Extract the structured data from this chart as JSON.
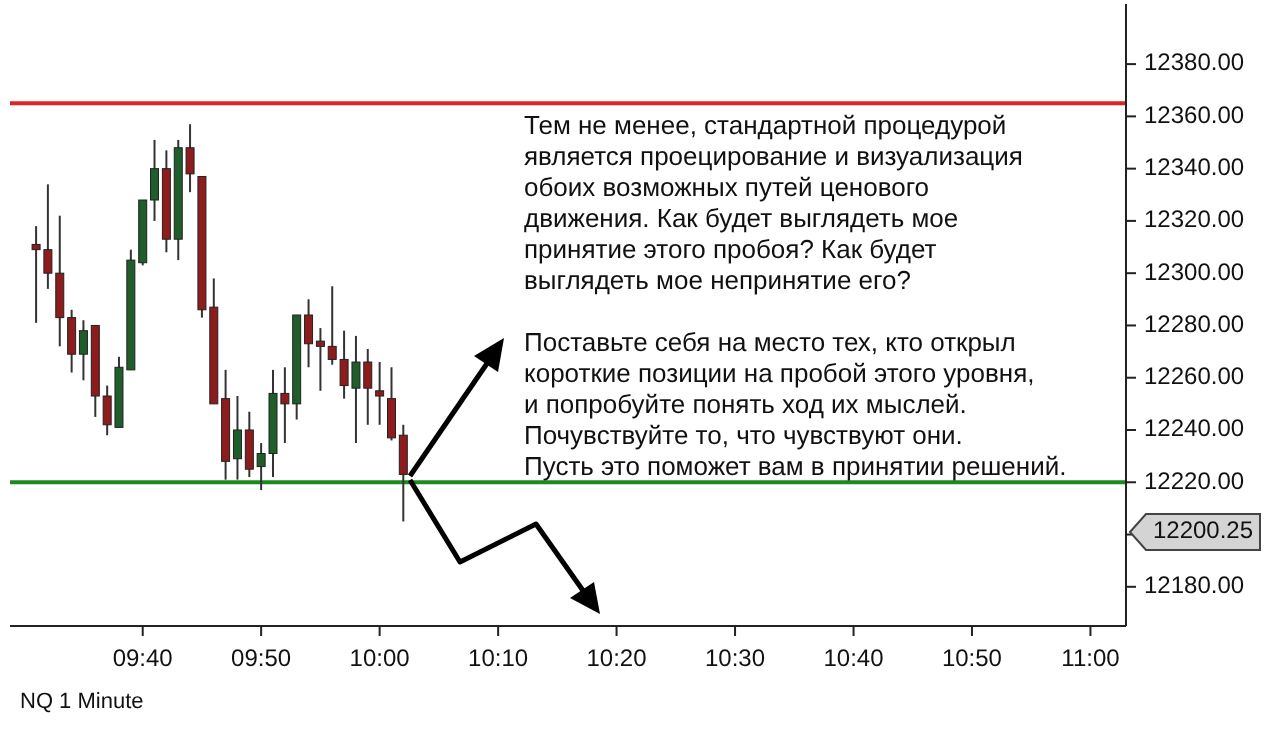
{
  "chart_data": {
    "type": "candlestick",
    "x": [
      9.5167,
      9.5333,
      9.55,
      9.5667,
      9.5833,
      9.6,
      9.6167,
      9.6333,
      9.65,
      9.6667,
      9.6833,
      9.7,
      9.7167,
      9.7333,
      9.75,
      9.7667,
      9.7833,
      9.8,
      9.8167,
      9.8333,
      9.85,
      9.8667,
      9.8833,
      9.9,
      9.9167,
      9.9333,
      9.95,
      9.9667,
      9.9833,
      10,
      10.0167,
      10.0333
    ],
    "ohlc": [
      [
        12311,
        12318,
        12281,
        12309
      ],
      [
        12309,
        12334,
        12294,
        12300
      ],
      [
        12300,
        12322,
        12272,
        12283
      ],
      [
        12283,
        12286,
        12262,
        12269
      ],
      [
        12269,
        12282,
        12259,
        12278
      ],
      [
        12280,
        12280,
        12245,
        12253
      ],
      [
        12253,
        12257,
        12238,
        12242
      ],
      [
        12241,
        12268,
        12241,
        12264
      ],
      [
        12263,
        12309,
        12263,
        12305
      ],
      [
        12304,
        12328,
        12303,
        12328
      ],
      [
        12328,
        12351,
        12320,
        12340
      ],
      [
        12340,
        12347,
        12308,
        12313
      ],
      [
        12313,
        12351,
        12305,
        12348
      ],
      [
        12348,
        12357,
        12331,
        12338
      ],
      [
        12337,
        12337,
        12283,
        12286
      ],
      [
        12287,
        12298,
        12250,
        12250
      ],
      [
        12252,
        12263,
        12221,
        12228
      ],
      [
        12229,
        12253,
        12221,
        12240
      ],
      [
        12240,
        12247,
        12222,
        12225
      ],
      [
        12226,
        12235,
        12217,
        12231
      ],
      [
        12231,
        12263,
        12222,
        12254
      ],
      [
        12254,
        12264,
        12235,
        12250
      ],
      [
        12250,
        12284,
        12244,
        12284
      ],
      [
        12284,
        12290,
        12264,
        12273
      ],
      [
        12274,
        12279,
        12255,
        12272
      ],
      [
        12272,
        12295,
        12265,
        12267
      ],
      [
        12267,
        12278,
        12252,
        12257
      ],
      [
        12256,
        12276,
        12235,
        12266
      ],
      [
        12266,
        12271,
        12242,
        12256
      ],
      [
        12255,
        12266,
        12242,
        12253
      ],
      [
        12252,
        12264,
        12236,
        12237
      ],
      [
        12238,
        12242,
        12205,
        12223
      ]
    ],
    "colors": [
      "#8e1c1c",
      "#8e1c1c",
      "#8e1c1c",
      "#8e1c1c",
      "#1f5e2a",
      "#8e1c1c",
      "#8e1c1c",
      "#1f5e2a",
      "#1f5e2a",
      "#1f5e2a",
      "#1f5e2a",
      "#8e1c1c",
      "#1f5e2a",
      "#8e1c1c",
      "#8e1c1c",
      "#8e1c1c",
      "#8e1c1c",
      "#1f5e2a",
      "#8e1c1c",
      "#1f5e2a",
      "#1f5e2a",
      "#8e1c1c",
      "#1f5e2a",
      "#8e1c1c",
      "#8e1c1c",
      "#8e1c1c",
      "#8e1c1c",
      "#1f5e2a",
      "#8e1c1c",
      "#8e1c1c",
      "#8e1c1c",
      "#8e1c1c"
    ],
    "xlim": [
      9.48,
      11.05
    ],
    "xticks": [
      {
        "value": 9.6667,
        "label": "09:40"
      },
      {
        "value": 9.8333,
        "label": "09:50"
      },
      {
        "value": 10,
        "label": "10:00"
      },
      {
        "value": 10.1667,
        "label": "10:10"
      },
      {
        "value": 10.3333,
        "label": "10:20"
      },
      {
        "value": 10.5,
        "label": "10:30"
      },
      {
        "value": 10.6667,
        "label": "10:40"
      },
      {
        "value": 10.8333,
        "label": "10:50"
      },
      {
        "value": 11,
        "label": "11:00"
      }
    ],
    "ylim": [
      12165,
      12403
    ],
    "yticks": [
      {
        "value": 12180,
        "label": "12180.00"
      },
      {
        "value": 12200,
        "label": null
      },
      {
        "value": 12220,
        "label": "12220.00"
      },
      {
        "value": 12240,
        "label": "12240.00"
      },
      {
        "value": 12260,
        "label": "12260.00"
      },
      {
        "value": 12280,
        "label": "12280.00"
      },
      {
        "value": 12300,
        "label": "12300.00"
      },
      {
        "value": 12320,
        "label": "12320.00"
      },
      {
        "value": 12340,
        "label": "12340.00"
      },
      {
        "value": 12360,
        "label": "12360.00"
      },
      {
        "value": 12380,
        "label": "12380.00"
      }
    ],
    "ref_lines": [
      {
        "axis": "y",
        "value": 12365,
        "color": "#e02424"
      },
      {
        "axis": "y",
        "value": 12220,
        "color": "#1c8a1c"
      }
    ],
    "annotations": [
      "Тем не менее, стандартной процедурой\nявляется проецирование и визуализация\nобоих возможных путей ценового\nдвижения. Как будет выглядеть мое\nпринятие этого пробоя? Как будет\nвыглядеть мое непринятие его?\n\nПоставьте себя на место тех, кто открыл\nкороткие позиции на пробой этого уровня,\nи попробуйте понять ход их мыслей.\nПочувствуйте то, что чувствуют они.\nПусть это поможет вам в принятии решений.",
      "12200.25",
      "NQ 1 Minute"
    ],
    "grid": false
  }
}
